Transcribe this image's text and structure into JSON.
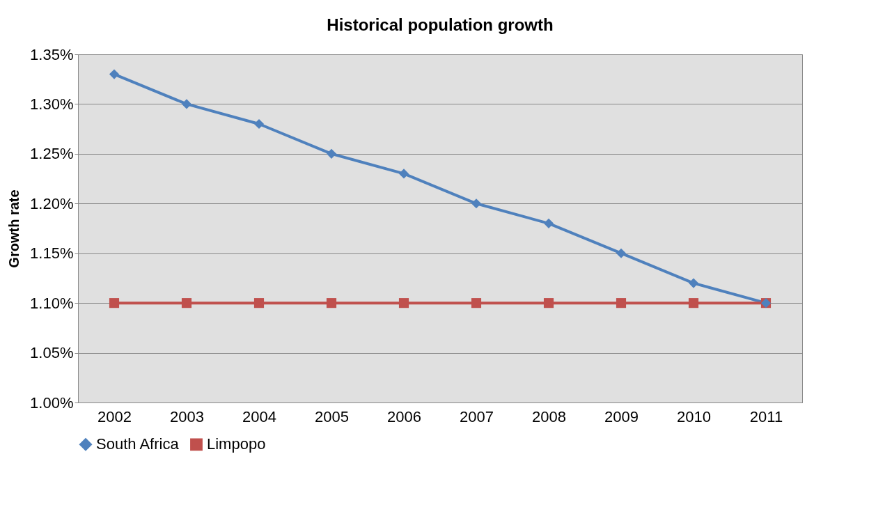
{
  "chart_data": {
    "type": "line",
    "title": "Historical population growth",
    "ylabel": "Growth rate",
    "categories": [
      "2002",
      "2003",
      "2004",
      "2005",
      "2006",
      "2007",
      "2008",
      "2009",
      "2010",
      "2011"
    ],
    "series": [
      {
        "name": "South Africa",
        "color": "#4f81bd",
        "marker": "diamond",
        "values": [
          1.33,
          1.3,
          1.28,
          1.25,
          1.23,
          1.2,
          1.18,
          1.15,
          1.12,
          1.1
        ]
      },
      {
        "name": "Limpopo",
        "color": "#c0504d",
        "marker": "square",
        "values": [
          1.1,
          1.1,
          1.1,
          1.1,
          1.1,
          1.1,
          1.1,
          1.1,
          1.1,
          1.1
        ]
      }
    ],
    "ylim": [
      1.0,
      1.35
    ],
    "yticks": [
      {
        "value": 1.0,
        "label": "1.00%"
      },
      {
        "value": 1.05,
        "label": "1.05%"
      },
      {
        "value": 1.1,
        "label": "1.10%"
      },
      {
        "value": 1.15,
        "label": "1.15%"
      },
      {
        "value": 1.2,
        "label": "1.20%"
      },
      {
        "value": 1.25,
        "label": "1.25%"
      },
      {
        "value": 1.3,
        "label": "1.30%"
      },
      {
        "value": 1.35,
        "label": "1.35%"
      }
    ],
    "grid": "y",
    "legend": "bottom",
    "line_style": "solid"
  }
}
